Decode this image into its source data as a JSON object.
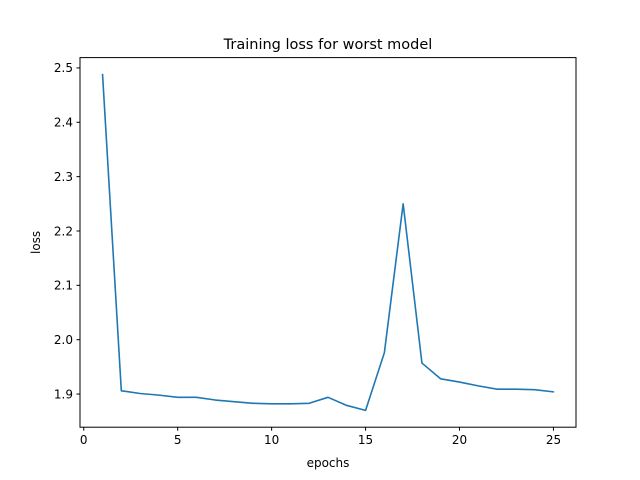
{
  "chart_data": {
    "type": "line",
    "title": "Training loss for worst model",
    "xlabel": "epochs",
    "ylabel": "loss",
    "xlim": [
      -0.2,
      26.2
    ],
    "ylim": [
      1.839,
      2.519
    ],
    "xticks": [
      0,
      5,
      10,
      15,
      20,
      25
    ],
    "yticks": [
      1.9,
      2.0,
      2.1,
      2.2,
      2.3,
      2.4,
      2.5
    ],
    "xtick_labels": [
      "0",
      "5",
      "10",
      "15",
      "20",
      "25"
    ],
    "ytick_labels": [
      "1.9",
      "2.0",
      "2.1",
      "2.2",
      "2.3",
      "2.4",
      "2.5"
    ],
    "grid": false,
    "colors": {
      "series": "#1f77b4"
    },
    "series": [
      {
        "x": [
          1,
          2,
          3,
          4,
          5,
          6,
          7,
          8,
          9,
          10,
          11,
          12,
          13,
          14,
          15,
          16,
          17,
          18,
          19,
          20,
          21,
          22,
          23,
          24,
          25
        ],
        "y": [
          2.488,
          1.906,
          1.901,
          1.898,
          1.894,
          1.894,
          1.889,
          1.886,
          1.883,
          1.882,
          1.882,
          1.883,
          1.894,
          1.879,
          1.87,
          1.976,
          2.25,
          1.957,
          1.928,
          1.922,
          1.915,
          1.909,
          1.909,
          1.908,
          1.904
        ]
      }
    ]
  }
}
